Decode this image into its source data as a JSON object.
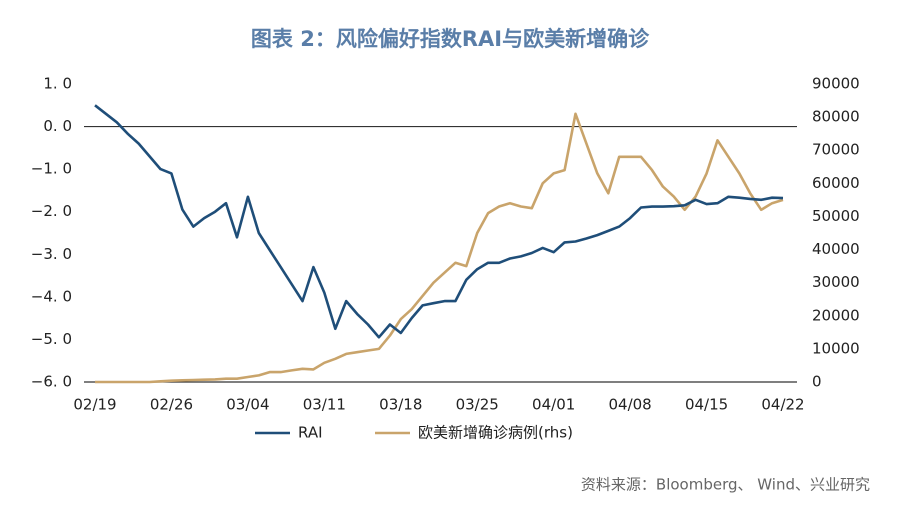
{
  "chart_data": {
    "type": "line",
    "title": "图表 2：风险偏好指数RAI与欧美新增确诊",
    "source": "资料来源：Bloomberg、 Wind、兴业研究",
    "categories": [
      "02/19",
      null,
      null,
      null,
      null,
      null,
      null,
      "02/26",
      null,
      null,
      null,
      null,
      null,
      null,
      "03/04",
      null,
      null,
      null,
      null,
      null,
      null,
      "03/11",
      null,
      null,
      null,
      null,
      null,
      null,
      "03/18",
      null,
      null,
      null,
      null,
      null,
      null,
      "03/25",
      null,
      null,
      null,
      null,
      null,
      null,
      "04/01",
      null,
      null,
      null,
      null,
      null,
      null,
      "04/08",
      null,
      null,
      null,
      null,
      null,
      null,
      "04/15",
      null,
      null,
      null,
      null,
      null,
      null,
      "04/22"
    ],
    "series": [
      {
        "name": "RAI",
        "color": "#1f4e79",
        "values": [
          0.5,
          0.3,
          0.1,
          -0.17,
          -0.4,
          -0.7,
          -1.0,
          -1.1,
          -1.95,
          -2.35,
          -2.15,
          -2.0,
          -1.8,
          -2.6,
          -1.65,
          -2.5,
          -2.9,
          -3.3,
          -3.7,
          -4.1,
          -3.3,
          -3.9,
          -4.75,
          -4.1,
          -4.4,
          -4.65,
          -4.95,
          -4.65,
          -4.85,
          -4.5,
          -4.2,
          -4.15,
          -4.1,
          -4.1,
          -3.6,
          -3.35,
          -3.2,
          -3.2,
          -3.1,
          -3.05,
          -2.97,
          -2.85,
          -2.95,
          -2.72,
          -2.7,
          -2.63,
          -2.55,
          -2.45,
          -2.35,
          -2.15,
          -1.9,
          -1.88,
          -1.88,
          -1.87,
          -1.85,
          -1.72,
          -1.82,
          -1.8,
          -1.65,
          -1.67,
          -1.7,
          -1.72,
          -1.67,
          -1.68
        ]
      },
      {
        "name": "欧美新增确诊病例(rhs)",
        "color": "#c9a46b",
        "axis": "y2",
        "values": [
          0,
          0,
          0,
          0,
          0,
          0,
          200,
          400,
          500,
          600,
          700,
          800,
          1000,
          1000,
          1500,
          2000,
          3000,
          3000,
          3500,
          4000,
          3800,
          5800,
          7000,
          8500,
          9000,
          9500,
          10000,
          14000,
          19000,
          22000,
          26000,
          30000,
          33000,
          36000,
          35000,
          45000,
          51000,
          53000,
          54000,
          53000,
          52500,
          60000,
          63000,
          64000,
          81000,
          72000,
          63000,
          57000,
          68000,
          68000,
          68000,
          64000,
          59000,
          56000,
          52000,
          56000,
          63000,
          73000,
          68000,
          63000,
          57000,
          52000,
          54000,
          55000
        ]
      }
    ],
    "ylim": [
      -6,
      1
    ],
    "yticks": [
      {
        "value": 1,
        "label": "1. 0"
      },
      {
        "value": 0,
        "label": "0. 0"
      },
      {
        "value": -1,
        "label": "−1. 0"
      },
      {
        "value": -2,
        "label": "−2. 0"
      },
      {
        "value": -3,
        "label": "−3. 0"
      },
      {
        "value": -4,
        "label": "−4. 0"
      },
      {
        "value": -5,
        "label": "−5. 0"
      },
      {
        "value": -6,
        "label": "−6. 0"
      }
    ],
    "y2lim": [
      0,
      90000
    ],
    "y2ticks": [
      0,
      10000,
      20000,
      30000,
      40000,
      50000,
      60000,
      70000,
      80000,
      90000
    ]
  }
}
